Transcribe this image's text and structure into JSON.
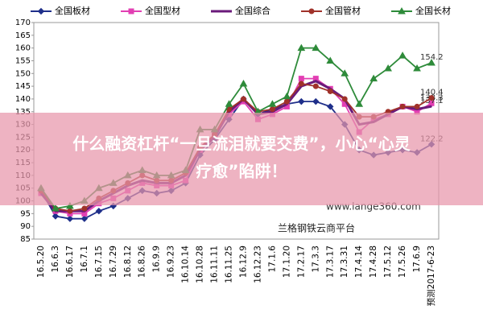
{
  "chart_data": {
    "type": "line",
    "categories": [
      "16.5.20",
      "16.6.3",
      "16.6.17",
      "16.7.1",
      "16.7.15",
      "16.7.29",
      "16.8.12",
      "16.8.26",
      "16.9.9",
      "16.9.23",
      "16.10.14",
      "16.10.28",
      "16.11.11",
      "16.11.25",
      "16.12.9",
      "16.12.23",
      "17.1.6",
      "17.1.20",
      "17.2.17",
      "17.3.3",
      "17.3.17",
      "17.3.31",
      "17.4.14",
      "17.4.28",
      "17.5.12",
      "17.5.26",
      "17.6.9",
      "预测2017-6-23"
    ],
    "series": [
      {
        "name": "全国板材",
        "color": "#1f2f8a",
        "marker": "diamond",
        "values": [
          104,
          94,
          93,
          93,
          96,
          98,
          101,
          104,
          103,
          104,
          107,
          118,
          124,
          132,
          140,
          134,
          136,
          138,
          139,
          139,
          137,
          130,
          120,
          118,
          119,
          120,
          119,
          122.2
        ]
      },
      {
        "name": "全国型材",
        "color": "#e23fb3",
        "marker": "square",
        "values": [
          103,
          96,
          95,
          95,
          99,
          101,
          104,
          107,
          106,
          106,
          108,
          120,
          126,
          134,
          139,
          132,
          134,
          137,
          148,
          148,
          144,
          138,
          127,
          132,
          134,
          137,
          135,
          138.3
        ]
      },
      {
        "name": "全国综合",
        "color": "#6a1a7a",
        "marker": "none",
        "values": [
          103,
          96,
          96,
          96,
          100,
          103,
          106,
          108,
          107,
          107,
          110,
          120,
          125,
          135,
          140,
          134,
          135,
          138,
          145,
          147,
          144,
          140,
          130,
          131,
          134,
          137,
          136,
          137.1
        ]
      },
      {
        "name": "全国管材",
        "color": "#a0322a",
        "marker": "circle",
        "values": [
          104,
          97,
          96,
          97,
          101,
          104,
          107,
          110,
          108,
          108,
          111,
          121,
          126,
          136,
          140,
          135,
          136,
          139,
          146,
          145,
          143,
          140,
          133,
          133,
          135,
          137,
          137,
          140.4
        ]
      },
      {
        "name": "全国长材",
        "color": "#2e8b3a",
        "marker": "triangle",
        "values": [
          105,
          97,
          98,
          100,
          105,
          107,
          110,
          112,
          110,
          110,
          112,
          128,
          128,
          138,
          146,
          135,
          138,
          141,
          160,
          160,
          155,
          150,
          138,
          148,
          152,
          157,
          152,
          154.2
        ]
      }
    ],
    "ylim": [
      85,
      170
    ],
    "yticks": [
      85,
      90,
      95,
      100,
      105,
      110,
      115,
      120,
      125,
      130,
      135,
      140,
      145,
      150,
      155,
      160,
      165,
      170
    ]
  },
  "watermark": "www.lange360.com",
  "source": "兰格钢铁云商平台",
  "banner": [
    "什么融资杠杆“一旦流泪就要交费”，小心“心灵",
    "疗愈”陷阱！"
  ]
}
